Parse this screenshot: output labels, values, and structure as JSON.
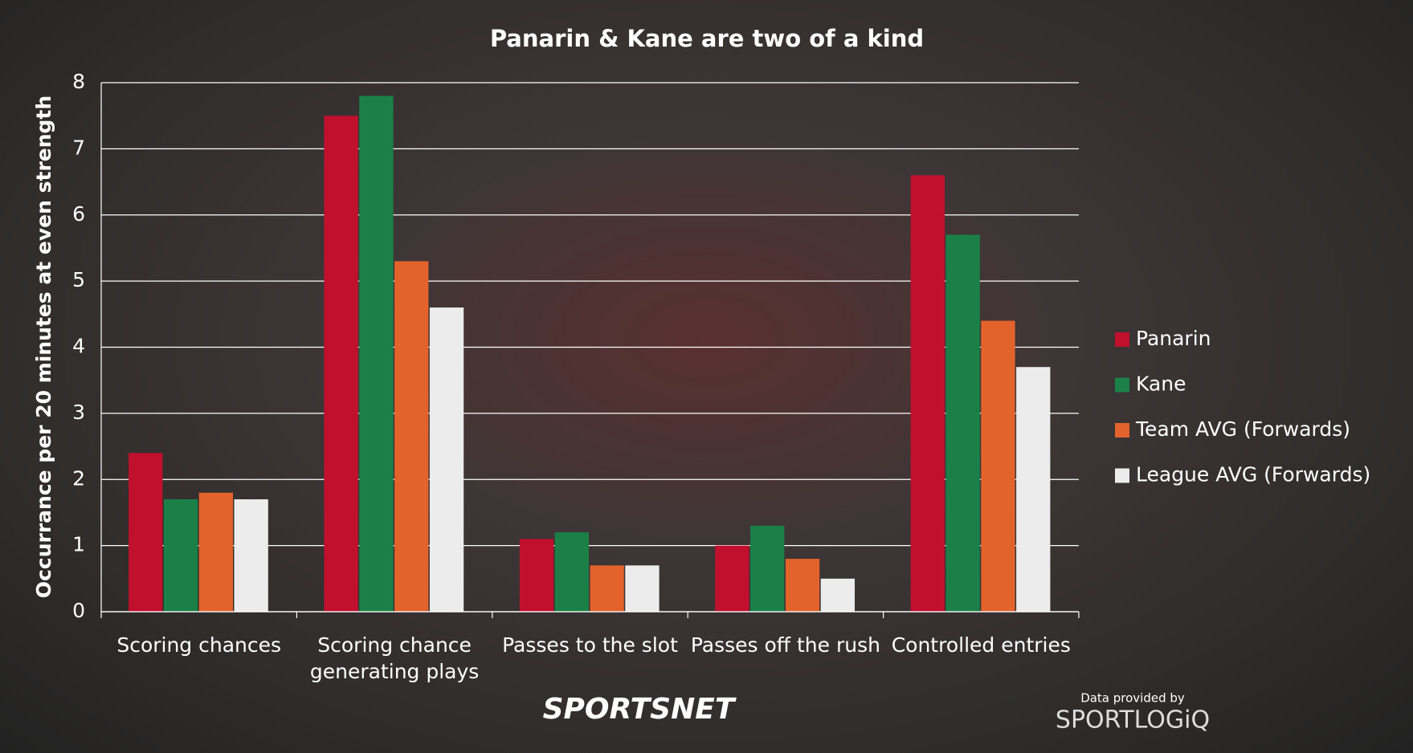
{
  "chart_data": {
    "type": "bar",
    "title": "Panarin & Kane are two of a kind",
    "y_label": "Occurrance per 20 minutes at even strength",
    "categories": [
      "Scoring chances",
      "Scoring chance generating plays",
      "Passes to the slot",
      "Passes off the rush",
      "Controlled entries"
    ],
    "series": [
      {
        "name": "Panarin",
        "color": "#c0102e",
        "values": [
          2.4,
          7.5,
          1.1,
          1.0,
          6.6
        ]
      },
      {
        "name": "Kane",
        "color": "#1b8048",
        "values": [
          1.7,
          7.8,
          1.2,
          1.3,
          5.7
        ]
      },
      {
        "name": "Team AVG (Forwards)",
        "color": "#e2632b",
        "values": [
          1.8,
          5.3,
          0.7,
          0.8,
          4.4
        ]
      },
      {
        "name": "League AVG (Forwards)",
        "color": "#ececec",
        "values": [
          1.7,
          4.6,
          0.7,
          0.5,
          3.7
        ]
      }
    ],
    "ylim": [
      0,
      8
    ],
    "yticks": [
      0,
      1,
      2,
      3,
      4,
      5,
      6,
      7,
      8
    ],
    "grid": true,
    "legend": "right",
    "annotations": [
      "SPORTSNET",
      "Data provided by",
      "SPORTLOGiQ"
    ]
  }
}
